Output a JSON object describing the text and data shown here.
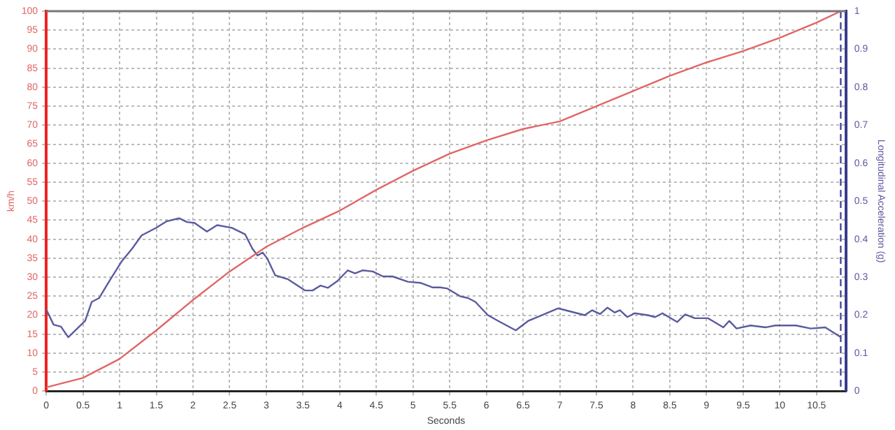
{
  "chart_data": {
    "type": "line",
    "xlabel": "Seconds",
    "ylabel": "km/h",
    "y2label": "Longitudinal Acceleration (g)",
    "xlim": [
      0,
      10.9
    ],
    "xticks": [
      0,
      0.5,
      1,
      1.5,
      2,
      2.5,
      3,
      3.5,
      4,
      4.5,
      5,
      5.5,
      6,
      6.5,
      7,
      7.5,
      8,
      8.5,
      9,
      9.5,
      10,
      10.5
    ],
    "ylim": [
      0,
      100
    ],
    "yticks": [
      0,
      5,
      10,
      15,
      20,
      25,
      30,
      35,
      40,
      45,
      50,
      55,
      60,
      65,
      70,
      75,
      80,
      85,
      90,
      95,
      100
    ],
    "y2lim": [
      0,
      1
    ],
    "y2ticks": [
      0,
      0.1,
      0.2,
      0.3,
      0.4,
      0.5,
      0.6,
      0.7,
      0.8,
      0.9,
      1
    ],
    "grid": true,
    "legend": false,
    "marker": "none",
    "line_style": "solid",
    "ref_lines": [
      {
        "axis": "x",
        "value": 10.83,
        "label": null,
        "color": "#4a4a9a",
        "line_style": "dashed"
      }
    ],
    "series": [
      {
        "color": "#e06666",
        "x": [
          0,
          0.5,
          1,
          1.5,
          2,
          2.5,
          3,
          3.5,
          4,
          4.5,
          5,
          5.5,
          6,
          6.5,
          7,
          7.5,
          8,
          8.5,
          9,
          9.5,
          10,
          10.5,
          10.83
        ],
        "values": [
          1,
          3.5,
          8.5,
          16,
          24,
          31.5,
          38,
          43,
          47.5,
          53,
          58,
          62.5,
          66,
          69,
          71,
          75,
          79,
          83,
          86.5,
          89.5,
          93,
          97,
          100
        ]
      },
      {
        "color": "#5a5aa0",
        "axis": "y2",
        "x": [
          0,
          0.1,
          0.2,
          0.3,
          0.53,
          0.62,
          0.72,
          0.86,
          1.03,
          1.17,
          1.3,
          1.5,
          1.64,
          1.81,
          1.92,
          2.02,
          2.19,
          2.33,
          2.53,
          2.71,
          2.81,
          2.88,
          2.95,
          3.01,
          3.12,
          3.29,
          3.53,
          3.63,
          3.74,
          3.84,
          3.97,
          4.11,
          4.21,
          4.31,
          4.45,
          4.59,
          4.72,
          4.93,
          5.1,
          5.27,
          5.37,
          5.47,
          5.64,
          5.75,
          5.85,
          6.02,
          6.16,
          6.4,
          6.57,
          6.98,
          7.34,
          7.44,
          7.55,
          7.65,
          7.75,
          7.82,
          7.92,
          8.02,
          8.2,
          8.3,
          8.4,
          8.6,
          8.71,
          8.84,
          9.02,
          9.23,
          9.31,
          9.41,
          9.6,
          9.81,
          9.94,
          10.22,
          10.42,
          10.62,
          10.83
        ],
        "values": [
          0.215,
          0.175,
          0.17,
          0.142,
          0.185,
          0.235,
          0.245,
          0.29,
          0.342,
          0.375,
          0.41,
          0.43,
          0.447,
          0.455,
          0.445,
          0.443,
          0.42,
          0.437,
          0.43,
          0.413,
          0.375,
          0.357,
          0.365,
          0.35,
          0.305,
          0.295,
          0.265,
          0.265,
          0.278,
          0.272,
          0.29,
          0.318,
          0.31,
          0.318,
          0.315,
          0.302,
          0.302,
          0.288,
          0.285,
          0.273,
          0.273,
          0.27,
          0.25,
          0.245,
          0.235,
          0.2,
          0.185,
          0.16,
          0.185,
          0.218,
          0.2,
          0.213,
          0.203,
          0.22,
          0.207,
          0.213,
          0.195,
          0.205,
          0.2,
          0.195,
          0.205,
          0.182,
          0.202,
          0.192,
          0.192,
          0.168,
          0.185,
          0.165,
          0.173,
          0.168,
          0.173,
          0.173,
          0.165,
          0.168,
          0.142
        ]
      }
    ]
  }
}
